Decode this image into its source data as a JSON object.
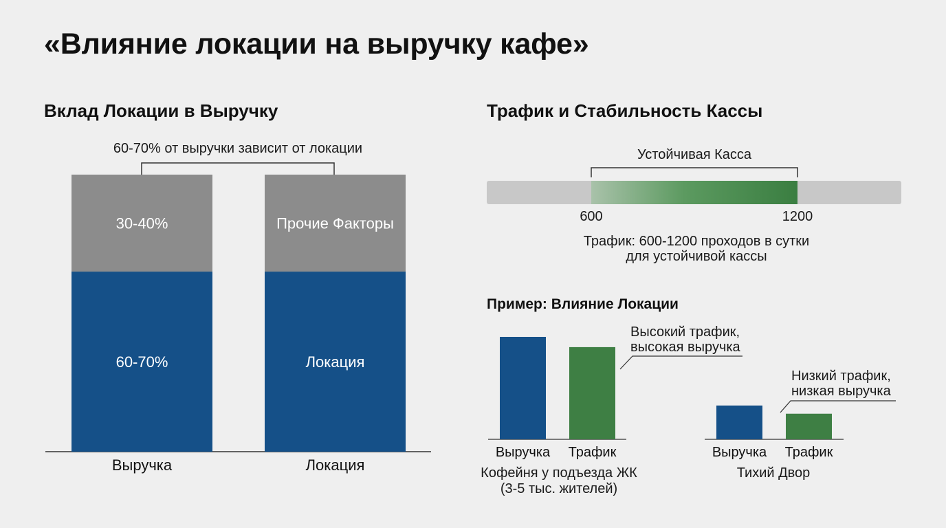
{
  "title": "«Влияние локации на выручку кафе»",
  "left": {
    "title": "Вклад Локации в Выручку",
    "annotation": "60-70% от выручки зависит от локации"
  },
  "right": {
    "title": "Трафик и Стабильность Кассы",
    "range": {
      "label": "Устойчивая Касса",
      "min_label": "600",
      "max_label": "1200",
      "note_line1": "Трафик: 600-1200 проходов в сутки",
      "note_line2": "для устойчивой кассы"
    },
    "example": {
      "title": "Пример: Влияние Локации",
      "case1": {
        "name_line1": "Кофейня у подъезда ЖК",
        "name_line2": "(3-5 тыс. жителей)",
        "callout_line1": "Высокий трафик,",
        "callout_line2": "высокая выручка"
      },
      "case2": {
        "name": "Тихий Двор",
        "callout_line1": "Низкий трафик,",
        "callout_line2": "низкая выручка"
      }
    }
  },
  "colors": {
    "blue": "#155088",
    "gray": "#8c8c8c",
    "green": "#3e7f44",
    "track": "#c8c8c8"
  },
  "chart_data": [
    {
      "type": "bar",
      "stacked": true,
      "categories": [
        "Выручка",
        "Локация"
      ],
      "series": [
        {
          "values": [
            65,
            65
          ],
          "labels": [
            "60-70%",
            "Локация"
          ]
        },
        {
          "values": [
            35,
            35
          ],
          "labels": [
            "30-40%",
            "Прочие Факторы"
          ]
        }
      ],
      "ylim": [
        0,
        100
      ]
    },
    {
      "type": "bar",
      "categories": [
        "Выручка",
        "Трафик"
      ],
      "groups": [
        "Кофейня у подъезда ЖК",
        "Тихий Двор"
      ],
      "series": [
        {
          "values": [
            100,
            90
          ]
        },
        {
          "values": [
            33,
            25
          ]
        }
      ],
      "ylim": [
        0,
        100
      ]
    }
  ]
}
